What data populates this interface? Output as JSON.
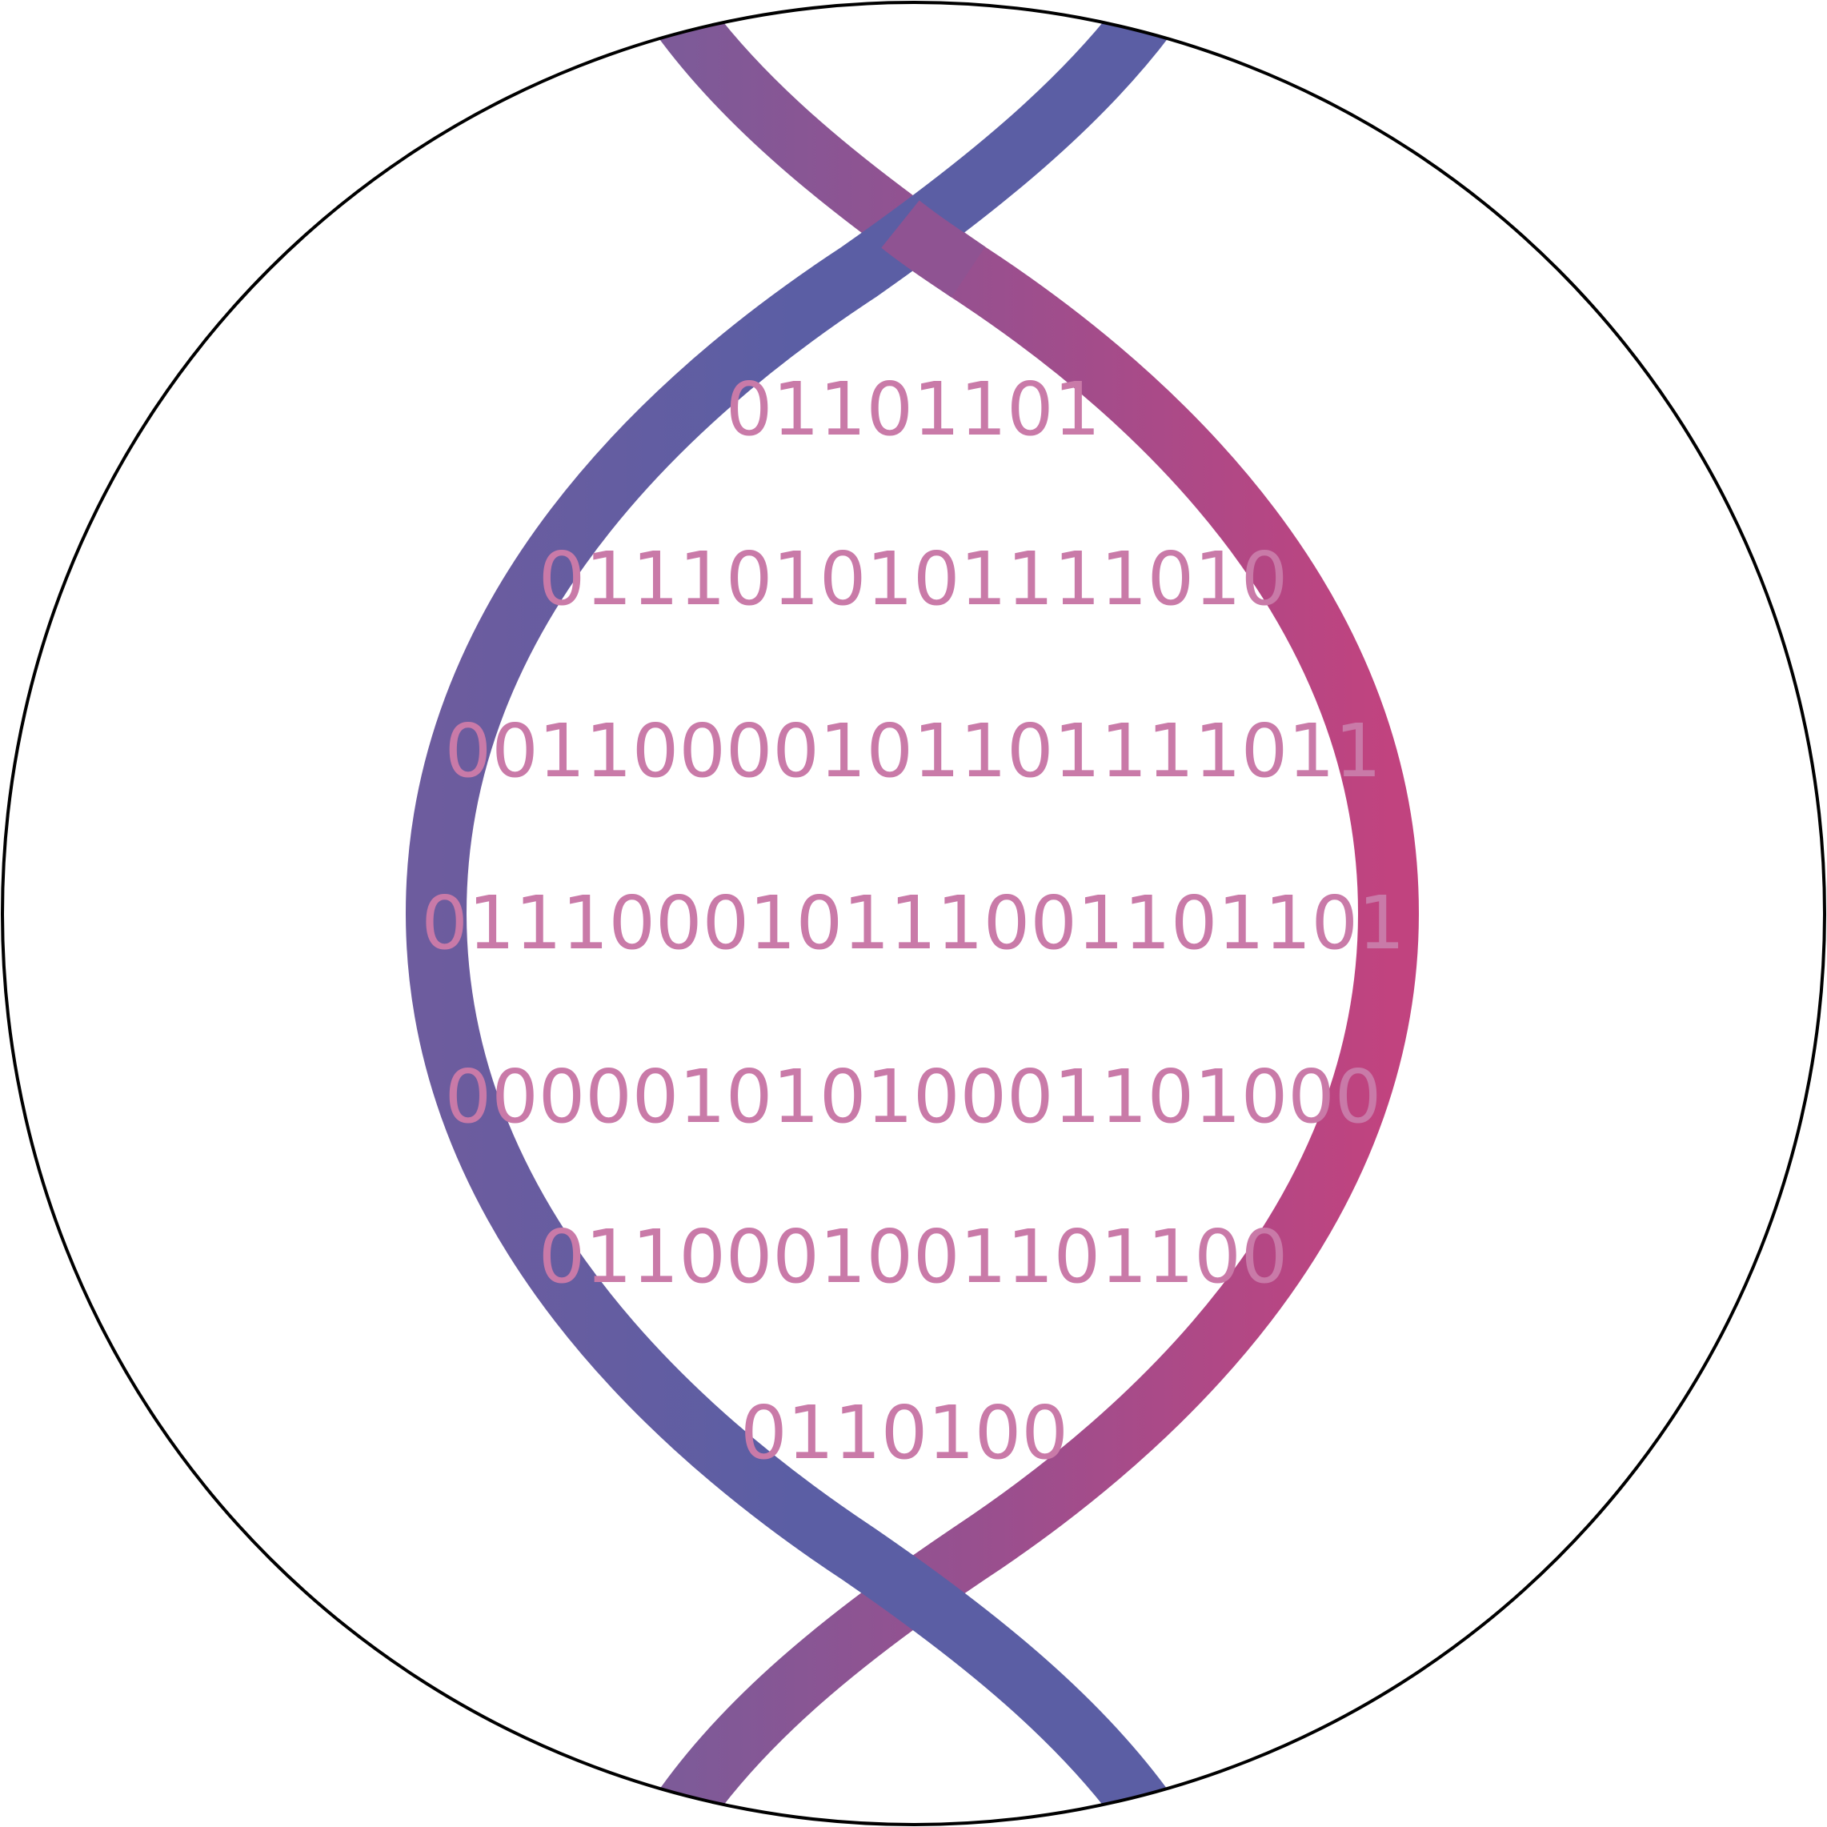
{
  "colors": {
    "background": "#ffffff",
    "outline": "#000000",
    "strand_blue": "#5b5ea4",
    "strand_purple": "#7d5a98",
    "strand_magenta": "#c1437f",
    "binary_text": "#c97aa8"
  },
  "graphic": {
    "emblem": "dna-double-helix-in-circle",
    "binary_rows": [
      "01101101",
      "0111010101111010",
      "00110000101101111011",
      "01110001011100110110​1",
      "00000101010001101000",
      "0110001001101100",
      "0110100"
    ]
  }
}
